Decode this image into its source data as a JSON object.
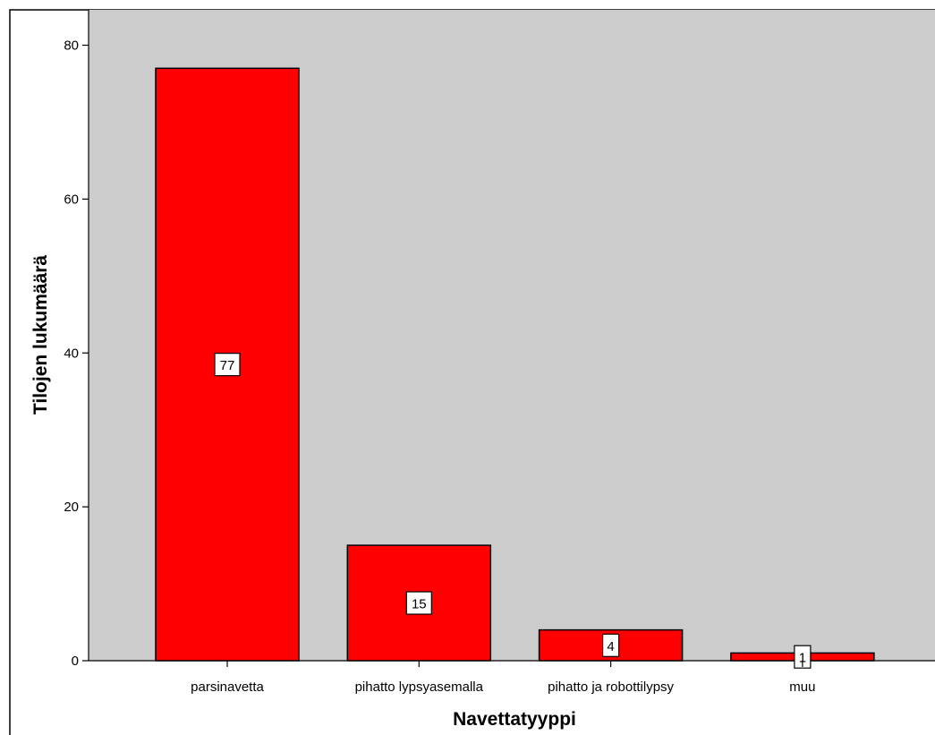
{
  "chart_data": {
    "type": "bar",
    "categories": [
      "parsinavetta",
      "pihatto lypsyasemalla",
      "pihatto ja robottilypsy",
      "muu"
    ],
    "values": [
      77,
      15,
      4,
      1
    ],
    "data_labels": [
      "77",
      "15",
      "4",
      "1"
    ],
    "title": "",
    "xlabel": "Navettatyyppi",
    "ylabel": "Tilojen lukumäärä",
    "ylim": [
      0,
      80
    ],
    "yticks": [
      0,
      20,
      40,
      60,
      80
    ],
    "ytick_labels": [
      "0",
      "20",
      "40",
      "60",
      "80"
    ],
    "grid": false,
    "legend": "none",
    "colors": {
      "bar": "#ff0000",
      "plot_background": "#cccccc",
      "page_background": "#ffffff",
      "label_box": "#ffffff"
    }
  }
}
